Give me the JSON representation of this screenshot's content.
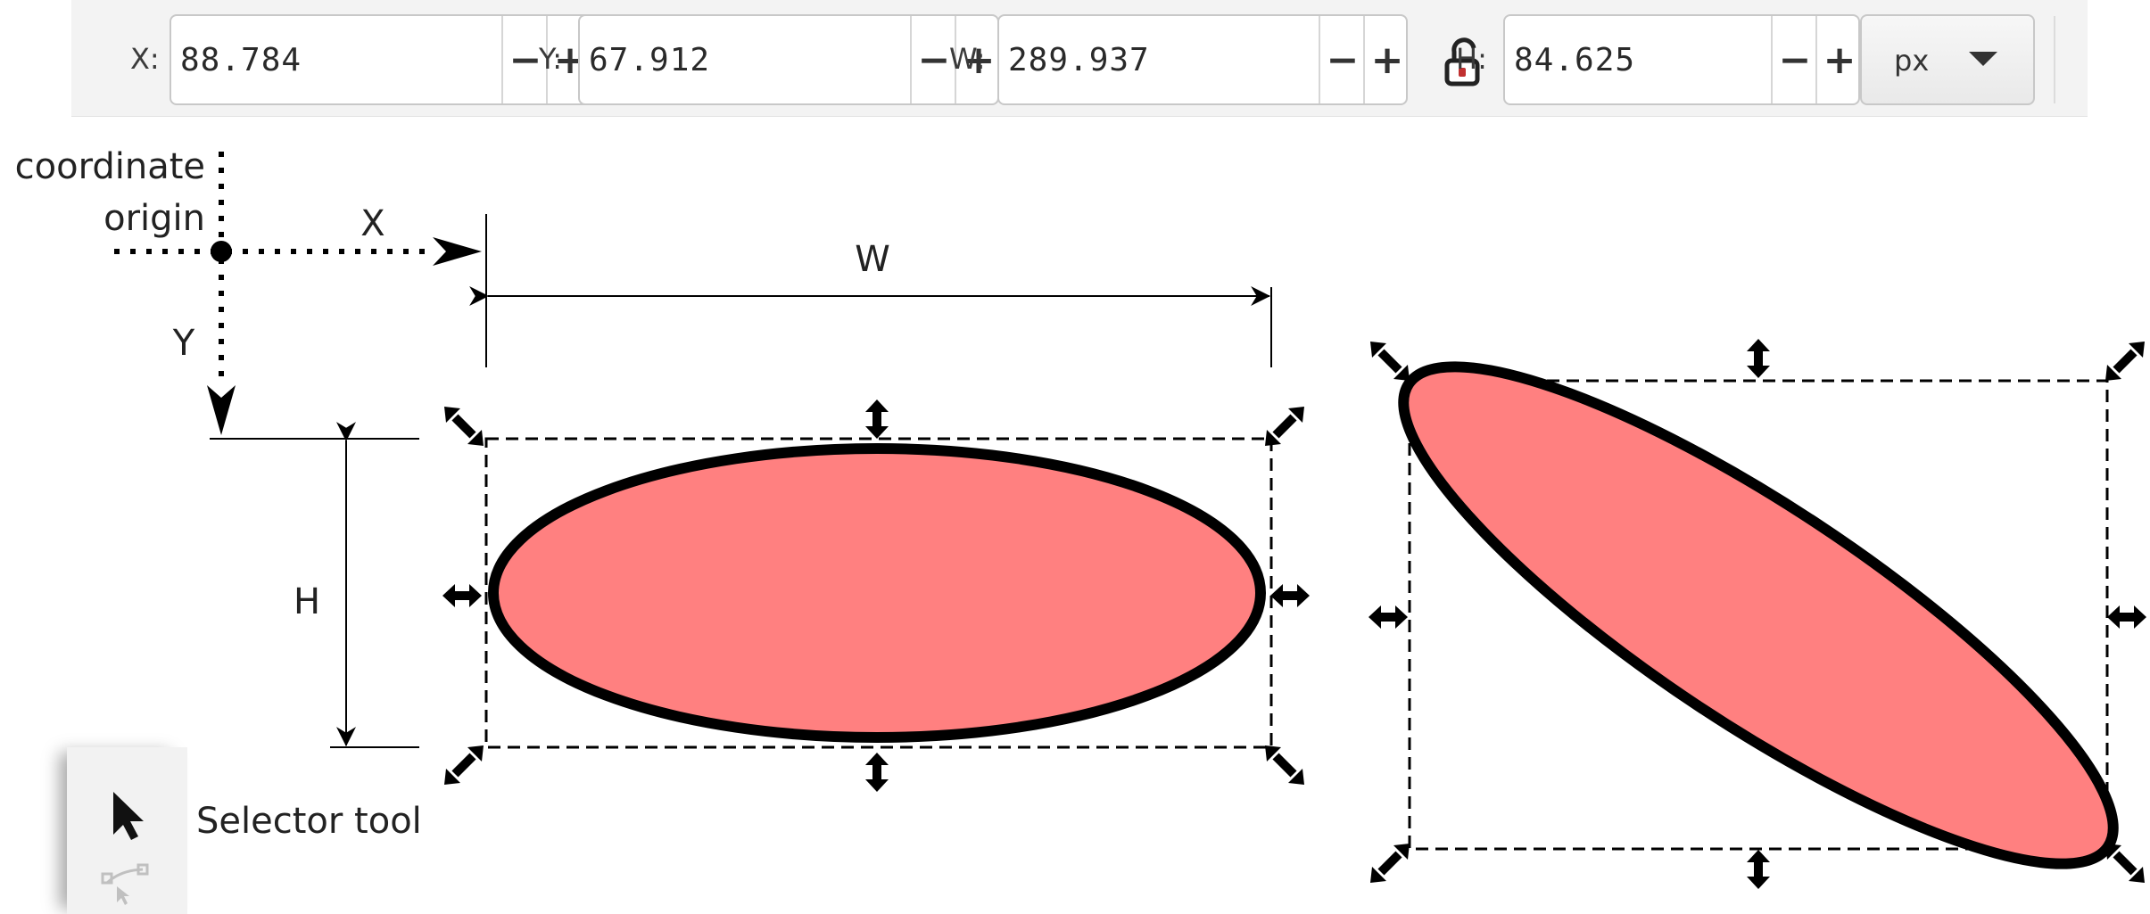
{
  "toolbar": {
    "x": {
      "label": "X:",
      "value": "88.784"
    },
    "y": {
      "label": "Y:",
      "value": "67.912"
    },
    "w": {
      "label": "W:",
      "value": "289.937"
    },
    "h": {
      "label": "H:",
      "value": "84.625"
    },
    "minus_glyph": "−",
    "plus_glyph": "+",
    "unit": "px",
    "lock_icon": "unlocked-padlock-icon"
  },
  "annotations": {
    "origin_line1": "coordinate",
    "origin_line2": "origin",
    "x_label": "X",
    "y_label": "Y",
    "w_label": "W",
    "h_label": "H"
  },
  "tool": {
    "label": "Selector tool",
    "icon": "arrow-pointer-icon",
    "next_icon": "node-editor-icon"
  },
  "colors": {
    "ellipse_fill": "#ff8080",
    "ellipse_stroke": "#000000",
    "bbox_stroke": "#000000",
    "toolbar_bg": "#f3f3f3"
  }
}
